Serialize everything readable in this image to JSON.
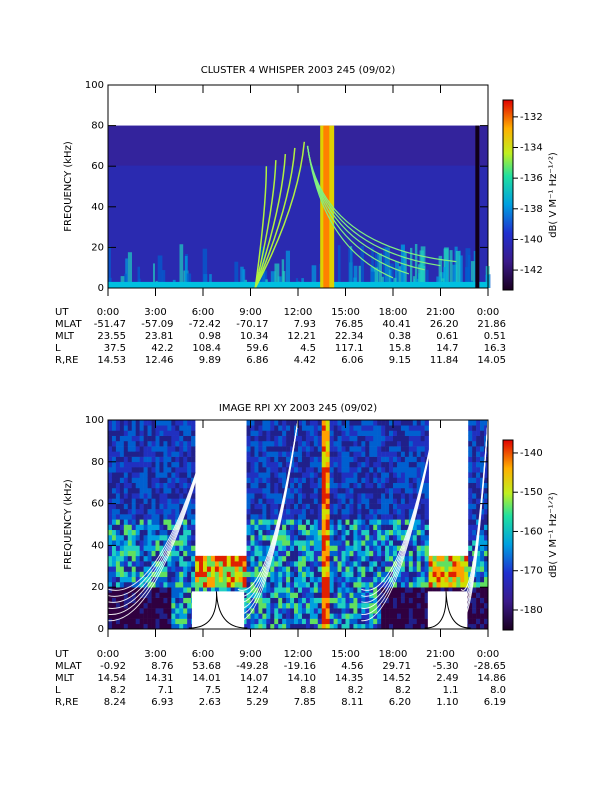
{
  "chart_data": [
    {
      "type": "spectrogram",
      "title": "CLUSTER 4 WHISPER 2003 245 (09/02)",
      "ylabel": "FREQUENCY (kHz)",
      "ylim": [
        0,
        100
      ],
      "yticks": [
        0,
        20,
        40,
        60,
        80,
        100
      ],
      "xlabel": "UT",
      "xlim": [
        0,
        24
      ],
      "xticks": [
        {
          "value": 0,
          "label": "0:00"
        },
        {
          "value": 3,
          "label": "3:00"
        },
        {
          "value": 6,
          "label": "6:00"
        },
        {
          "value": 9,
          "label": "9:00"
        },
        {
          "value": 12,
          "label": "12:00"
        },
        {
          "value": 15,
          "label": "15:00"
        },
        {
          "value": 18,
          "label": "18:00"
        },
        {
          "value": 21,
          "label": "21:00"
        },
        {
          "value": 24,
          "label": "0:00"
        }
      ],
      "colorbar": {
        "label": "dB( V M⁻¹ Hz⁻¹ᐟ²)",
        "lim": [
          -143.3,
          -130.9
        ],
        "ticks": [
          -132,
          -134,
          -136,
          -138,
          -140,
          -142
        ]
      },
      "ephemeris": [
        {
          "name": "MLAT",
          "values": [
            "-51.47",
            "-57.09",
            "-72.42",
            "-70.17",
            "7.93",
            "76.85",
            "40.41",
            "26.20",
            "21.86"
          ]
        },
        {
          "name": "MLT",
          "values": [
            "23.55",
            "23.81",
            "0.98",
            "10.34",
            "12.21",
            "22.34",
            "0.38",
            "0.61",
            "0.51"
          ]
        },
        {
          "name": "L",
          "values": [
            "37.5",
            "42.2",
            "108.4",
            "59.6",
            "4.5",
            "117.1",
            "15.8",
            "14.7",
            "16.3"
          ]
        },
        {
          "name": "R,RE",
          "values": [
            "14.53",
            "12.46",
            "9.89",
            "6.86",
            "4.42",
            "6.06",
            "9.15",
            "11.84",
            "14.05"
          ]
        }
      ]
    },
    {
      "type": "spectrogram",
      "title": "IMAGE RPI XY 2003 245 (09/02)",
      "ylabel": "FREQUENCY (kHz)",
      "ylim": [
        0,
        100
      ],
      "yticks": [
        0,
        20,
        40,
        60,
        80,
        100
      ],
      "xlabel": "UT",
      "xlim": [
        0,
        24
      ],
      "xticks": [
        {
          "value": 0,
          "label": "0:00"
        },
        {
          "value": 3,
          "label": "3:00"
        },
        {
          "value": 6,
          "label": "6:00"
        },
        {
          "value": 9,
          "label": "9:00"
        },
        {
          "value": 12,
          "label": "12:00"
        },
        {
          "value": 15,
          "label": "15:00"
        },
        {
          "value": 18,
          "label": "18:00"
        },
        {
          "value": 21,
          "label": "21:00"
        },
        {
          "value": 24,
          "label": "0:00"
        }
      ],
      "colorbar": {
        "label": "dB( V M⁻¹ Hz⁻¹ᐟ²)",
        "lim": [
          -185.1,
          -136.7
        ],
        "ticks": [
          -140,
          -150,
          -160,
          -170,
          -180
        ]
      },
      "ephemeris": [
        {
          "name": "MLAT",
          "values": [
            "-0.92",
            "8.76",
            "53.68",
            "-49.28",
            "-19.16",
            "4.56",
            "29.71",
            "-5.30",
            "-28.65"
          ]
        },
        {
          "name": "MLT",
          "values": [
            "14.54",
            "14.31",
            "14.01",
            "14.07",
            "14.10",
            "14.35",
            "14.52",
            "2.49",
            "14.86"
          ]
        },
        {
          "name": "L",
          "values": [
            "8.2",
            "7.1",
            "7.5",
            "12.4",
            "8.8",
            "8.2",
            "8.2",
            "1.1",
            "8.0"
          ]
        },
        {
          "name": "R,RE",
          "values": [
            "8.24",
            "6.93",
            "2.63",
            "5.29",
            "7.85",
            "8.11",
            "6.20",
            "1.10",
            "6.19"
          ]
        }
      ]
    }
  ]
}
